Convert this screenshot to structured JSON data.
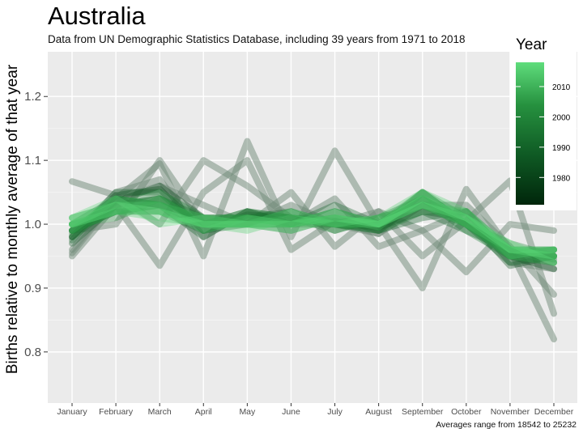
{
  "title": "Australia",
  "subtitle": "Data from UN Demographic Statistics Database, including 39 years from 1971 to 2018",
  "caption": "Averages range from 18542 to 25232",
  "chart_data": {
    "type": "line",
    "title": "Australia",
    "subtitle": "Data from UN Demographic Statistics Database, including 39 years from 1971 to 2018",
    "xlabel": "",
    "ylabel": "Births relative to monthly average of that year",
    "categories": [
      "January",
      "February",
      "March",
      "April",
      "May",
      "June",
      "July",
      "August",
      "September",
      "October",
      "November",
      "December"
    ],
    "yticks": [
      0.8,
      0.9,
      1.0,
      1.1,
      1.2
    ],
    "ylim": [
      0.72,
      1.27
    ],
    "grid": true,
    "legend": {
      "title": "Year",
      "placement": "right",
      "ticks": [
        1980,
        1990,
        2000,
        2010
      ],
      "range": [
        1971,
        2018
      ],
      "colors": [
        "#00260b",
        "#0f5a24",
        "#26913f",
        "#5fdd7c"
      ]
    },
    "series": [
      {
        "year": 1971,
        "values": [
          1.067,
          1.045,
          1.0,
          1.1,
          1.06,
          1.01,
          1.0,
          1.02,
          0.99,
          1.02,
          0.94,
          0.93
        ]
      },
      {
        "year": 1972,
        "values": [
          0.955,
          1.04,
          1.095,
          0.95,
          1.13,
          0.98,
          1.115,
          1.0,
          0.9,
          1.055,
          0.96,
          0.95
        ]
      },
      {
        "year": 1973,
        "values": [
          0.95,
          1.03,
          0.935,
          1.05,
          1.1,
          0.96,
          1.005,
          0.985,
          1.05,
          1.0,
          0.96,
          0.82
        ]
      },
      {
        "year": 1975,
        "values": [
          0.99,
          1.0,
          1.1,
          1.0,
          1.0,
          1.05,
          0.965,
          1.02,
          0.95,
          1.005,
          1.068,
          0.86
        ]
      },
      {
        "year": 1977,
        "values": [
          0.98,
          1.05,
          1.07,
          0.98,
          1.02,
          1.0,
          1.04,
          0.965,
          0.99,
          0.925,
          1.0,
          0.99
        ]
      },
      {
        "year": 1979,
        "values": [
          0.96,
          1.04,
          1.06,
          1.03,
          1.0,
          1.03,
          1.0,
          0.985,
          1.03,
          1.03,
          0.965,
          0.89
        ]
      },
      {
        "year": 1981,
        "values": [
          0.99,
          1.035,
          1.06,
          1.01,
          1.01,
          1.0,
          1.01,
          0.99,
          1.04,
          1.0,
          0.95,
          0.93
        ]
      },
      {
        "year": 1983,
        "values": [
          0.98,
          1.045,
          1.055,
          0.99,
          1.015,
          1.01,
          1.005,
          0.995,
          1.02,
          1.01,
          0.935,
          0.95
        ]
      },
      {
        "year": 1985,
        "values": [
          0.97,
          1.03,
          1.04,
          1.0,
          1.02,
          1.0,
          1.02,
          1.0,
          1.03,
          1.0,
          0.95,
          0.96
        ]
      },
      {
        "year": 1987,
        "values": [
          1.0,
          1.04,
          1.03,
          0.98,
          1.02,
          1.01,
          1.0,
          0.99,
          1.01,
          1.02,
          0.95,
          0.94
        ]
      },
      {
        "year": 1989,
        "values": [
          0.975,
          1.05,
          1.05,
          0.99,
          1.0,
          1.0,
          1.03,
          1.0,
          1.02,
          0.99,
          0.96,
          0.96
        ]
      },
      {
        "year": 1991,
        "values": [
          0.99,
          1.02,
          1.03,
          1.0,
          1.01,
          1.02,
          0.99,
          1.01,
          1.04,
          1.0,
          0.94,
          0.95
        ]
      },
      {
        "year": 1993,
        "values": [
          0.98,
          1.03,
          1.04,
          1.01,
          1.0,
          0.99,
          1.01,
          1.0,
          1.03,
          1.01,
          0.96,
          0.945
        ]
      },
      {
        "year": 1995,
        "values": [
          1.0,
          1.02,
          1.02,
          0.99,
          1.01,
          1.01,
          1.0,
          0.995,
          1.05,
          1.0,
          0.955,
          0.96
        ]
      },
      {
        "year": 1997,
        "values": [
          0.99,
          1.04,
          1.03,
          1.0,
          1.0,
          1.0,
          1.02,
          1.0,
          1.04,
          0.99,
          0.95,
          0.95
        ]
      },
      {
        "year": 1999,
        "values": [
          0.985,
          1.03,
          1.05,
          1.01,
          1.01,
          1.0,
          1.0,
          0.99,
          1.02,
          1.02,
          0.96,
          0.94
        ]
      },
      {
        "year": 2001,
        "values": [
          1.0,
          1.01,
          1.04,
          1.0,
          1.02,
          1.01,
          0.99,
          1.01,
          1.03,
          1.0,
          0.97,
          0.95
        ]
      },
      {
        "year": 2003,
        "values": [
          0.99,
          1.02,
          1.03,
          1.01,
          1.0,
          1.02,
          1.0,
          1.0,
          1.05,
          1.01,
          0.95,
          0.96
        ]
      },
      {
        "year": 2005,
        "values": [
          1.01,
          1.03,
          1.02,
          1.0,
          1.01,
          1.0,
          1.01,
          1.0,
          1.04,
          1.0,
          0.96,
          0.95
        ]
      },
      {
        "year": 2007,
        "values": [
          1.0,
          1.02,
          1.04,
          1.0,
          1.0,
          1.01,
          1.0,
          1.01,
          1.03,
          1.02,
          0.95,
          0.94
        ]
      },
      {
        "year": 2009,
        "values": [
          0.99,
          1.04,
          1.03,
          1.01,
          1.01,
          1.0,
          1.01,
          0.995,
          1.05,
          1.0,
          0.96,
          0.96
        ]
      },
      {
        "year": 2011,
        "values": [
          1.0,
          1.02,
          1.02,
          1.0,
          1.0,
          1.02,
          1.0,
          1.0,
          1.04,
          1.01,
          0.96,
          0.95
        ]
      },
      {
        "year": 2013,
        "values": [
          1.01,
          1.03,
          1.03,
          0.99,
          1.01,
          1.0,
          1.01,
          1.0,
          1.03,
          1.0,
          0.95,
          0.96
        ]
      },
      {
        "year": 2015,
        "values": [
          1.0,
          1.02,
          1.01,
          1.0,
          0.99,
          1.01,
          1.0,
          1.01,
          1.05,
          1.02,
          0.96,
          0.95
        ]
      },
      {
        "year": 2017,
        "values": [
          1.01,
          1.04,
          1.0,
          1.01,
          1.0,
          0.99,
          1.01,
          1.0,
          1.04,
          1.01,
          0.96,
          0.96
        ]
      },
      {
        "year": 2018,
        "values": [
          1.0,
          1.03,
          1.02,
          1.0,
          1.0,
          1.0,
          1.02,
          1.0,
          1.03,
          1.01,
          0.97,
          0.94
        ]
      }
    ]
  }
}
